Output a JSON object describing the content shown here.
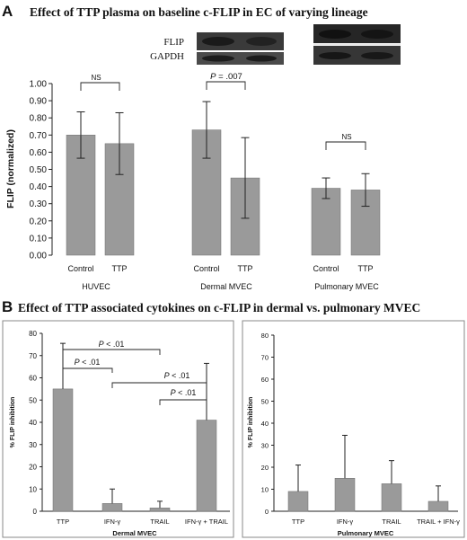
{
  "panel_a": {
    "letter": "A",
    "title": "Effect of TTP plasma on baseline c-FLIP in EC of varying lineage",
    "blot_labels": [
      "FLIP",
      "GAPDH"
    ]
  },
  "panel_b": {
    "letter": "B",
    "title": "Effect of TTP associated cytokines on c-FLIP in dermal vs. pulmonary MVEC"
  },
  "chart_data": [
    {
      "id": "a",
      "type": "bar",
      "ylabel": "FLIP (normalized)",
      "ylim": [
        0,
        1.0
      ],
      "yticks": [
        "0.00",
        "0.10",
        "0.20",
        "0.30",
        "0.40",
        "0.50",
        "0.60",
        "0.70",
        "0.80",
        "0.90",
        "1.00"
      ],
      "groups": [
        {
          "name": "HUVEC",
          "categories": [
            "Control",
            "TTP"
          ],
          "values": [
            0.7,
            0.65
          ],
          "errors": [
            0.135,
            0.18
          ],
          "annotation": "NS"
        },
        {
          "name": "Dermal MVEC",
          "categories": [
            "Control",
            "TTP"
          ],
          "values": [
            0.73,
            0.45
          ],
          "errors": [
            0.165,
            0.235
          ],
          "annotation": "P = .007"
        },
        {
          "name": "Pulmonary MVEC",
          "categories": [
            "Control",
            "TTP"
          ],
          "values": [
            0.39,
            0.38
          ],
          "errors": [
            0.06,
            0.095
          ],
          "annotation": "NS"
        }
      ],
      "grid": false
    },
    {
      "id": "b1",
      "type": "bar",
      "xlabel": "Dermal MVEC",
      "ylabel": "% FLIP inhibition",
      "ylim": [
        0,
        80
      ],
      "yticks": [
        "0",
        "10",
        "20",
        "30",
        "40",
        "50",
        "60",
        "70",
        "80"
      ],
      "categories": [
        "TTP",
        "IFN-γ",
        "TRAIL",
        "IFN-γ + TRAIL"
      ],
      "values": [
        55,
        3.5,
        1.5,
        41
      ],
      "errors": [
        20.5,
        6.5,
        3,
        25.5
      ],
      "annotations": [
        "P < .01",
        "P < .01",
        "P < .01",
        "P < .01"
      ],
      "grid": false
    },
    {
      "id": "b2",
      "type": "bar",
      "xlabel": "Pulmonary MVEC",
      "ylabel": "% FLIP inhibition",
      "ylim": [
        0,
        80
      ],
      "yticks": [
        "0",
        "10",
        "20",
        "30",
        "40",
        "50",
        "60",
        "70",
        "80"
      ],
      "categories": [
        "TTP",
        "IFN-γ",
        "TRAIL",
        "TRAIL + IFN-γ"
      ],
      "values": [
        9,
        15,
        12.5,
        4.5
      ],
      "errors": [
        12,
        19.5,
        10.5,
        7
      ],
      "grid": false
    }
  ]
}
